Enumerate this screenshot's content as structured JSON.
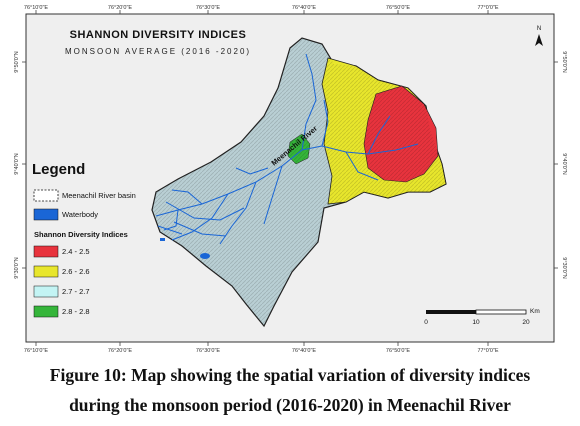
{
  "map": {
    "title": "SHANNON DIVERSITY INDICES",
    "subtitle": "MONSOON AVERAGE (2016 -2020)",
    "river_label": "Meenachil River",
    "north_label": "N",
    "colors": {
      "frame": "#ffffff",
      "panel": "#efefef",
      "basin": "#b9cfd4",
      "high": "#e8333d",
      "mid": "#e8e62c",
      "low": "#c3f4f4",
      "vlow": "#35b53a",
      "water": "#1a66d6"
    },
    "top_ticks": [
      "76°10'0\"E",
      "76°20'0\"E",
      "76°30'0\"E",
      "76°40'0\"E",
      "76°50'0\"E",
      "77°0'0\"E"
    ],
    "bottom_ticks": [
      "76°10'0\"E",
      "76°20'0\"E",
      "76°30'0\"E",
      "76°40'0\"E",
      "76°50'0\"E",
      "77°0'0\"E"
    ],
    "left_ticks": [
      "9°50'0\"N",
      "9°40'0\"N",
      "9°30'0\"N"
    ],
    "right_ticks": [
      "9°50'0\"N",
      "9°40'0\"N",
      "9°30'0\"N"
    ],
    "scale_bar": {
      "labels": [
        "0",
        "10",
        "20"
      ],
      "unit": "Km"
    }
  },
  "legend": {
    "title": "Legend",
    "basin_label": "Meenachil River basin",
    "water_label": "Waterbody",
    "index_title": "Shannon Diversity Indices",
    "classes": [
      {
        "label": "2.4 - 2.5",
        "color": "#e8333d"
      },
      {
        "label": "2.6 - 2.6",
        "color": "#e8e62c"
      },
      {
        "label": "2.7 - 2.7",
        "color": "#c3f4f4"
      },
      {
        "label": "2.8 - 2.8",
        "color": "#35b53a"
      }
    ]
  },
  "caption": {
    "line1": "Figure 10: Map showing the spatial variation of diversity indices",
    "line2": "during the monsoon period (2016-2020) in Meenachil River"
  }
}
